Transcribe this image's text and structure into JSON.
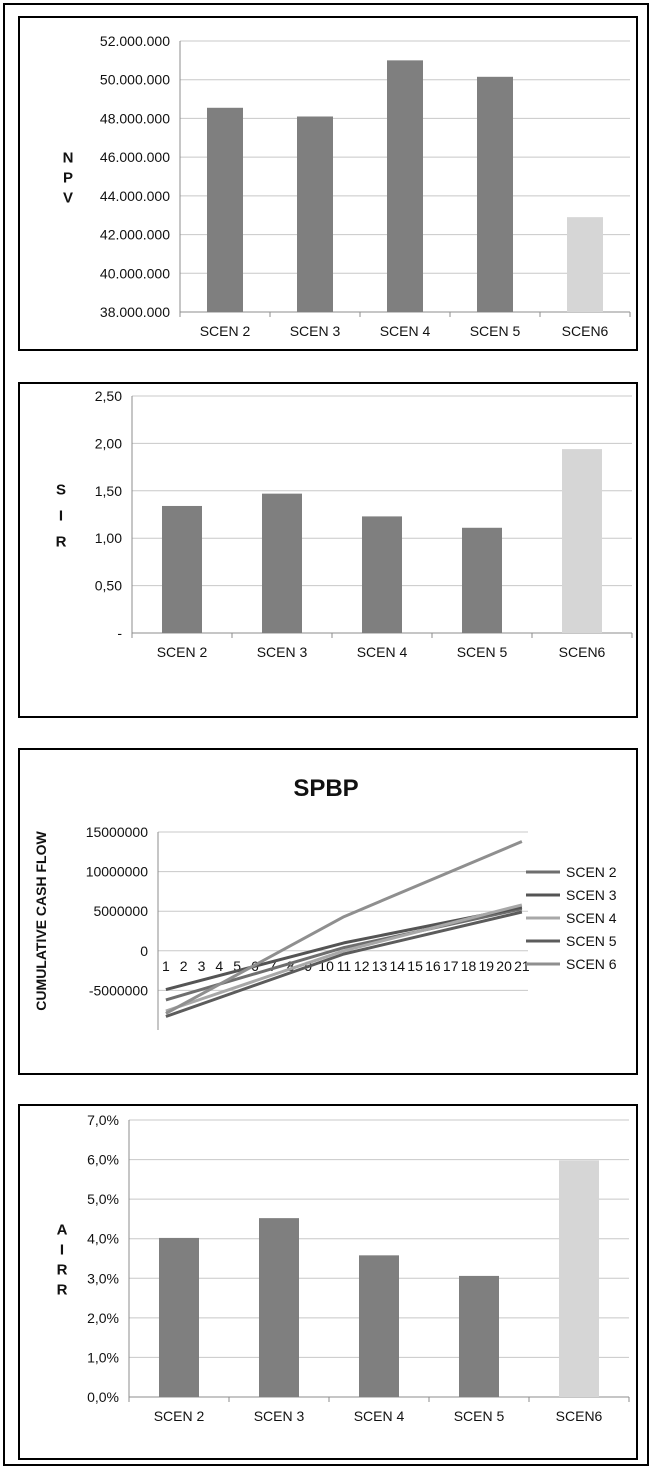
{
  "colors": {
    "bar": "#7f7f7f",
    "highlight": "#d6d6d6",
    "grid": "#c8c8c8",
    "axis": "#8c8c8c",
    "text": "#111111"
  },
  "chart_data": [
    {
      "type": "bar",
      "title": "",
      "ylabel": "NPV",
      "ylabel_letters": [
        "N",
        "P",
        "V"
      ],
      "categories": [
        "SCEN 2",
        "SCEN 3",
        "SCEN 4",
        "SCEN 5",
        "SCEN6"
      ],
      "values": [
        48550000,
        48100000,
        51000000,
        50150000,
        42900000
      ],
      "highlight_index": 4,
      "ylim": [
        38000000,
        52000000
      ],
      "yticks": [
        38000000,
        40000000,
        42000000,
        44000000,
        46000000,
        48000000,
        50000000,
        52000000
      ],
      "ytick_labels": [
        "38.000.000",
        "40.000.000",
        "42.000.000",
        "44.000.000",
        "46.000.000",
        "48.000.000",
        "50.000.000",
        "52.000.000"
      ],
      "grid": true
    },
    {
      "type": "bar",
      "title": "",
      "ylabel": "SIR",
      "ylabel_letters": [
        "S",
        "I",
        "R"
      ],
      "categories": [
        "SCEN 2",
        "SCEN 3",
        "SCEN 4",
        "SCEN 5",
        "SCEN6"
      ],
      "values": [
        1.34,
        1.47,
        1.23,
        1.11,
        1.94
      ],
      "highlight_index": 4,
      "ylim": [
        0,
        2.5
      ],
      "yticks": [
        0,
        0.5,
        1,
        1.5,
        2,
        2.5
      ],
      "ytick_labels": [
        "-",
        "0,50",
        "1,00",
        "1,50",
        "2,00",
        "2,50"
      ],
      "grid": true
    },
    {
      "type": "line",
      "title": "SPBP",
      "ylabel": "CUMULATIVE CASH FLOW",
      "x": [
        1,
        2,
        3,
        4,
        5,
        6,
        7,
        8,
        9,
        10,
        11,
        12,
        13,
        14,
        15,
        16,
        17,
        18,
        19,
        20,
        21
      ],
      "xtick_labels": [
        "1",
        "2",
        "3",
        "4",
        "5",
        "6",
        "7",
        "8",
        "9",
        "10",
        "11",
        "12",
        "13",
        "14",
        "15",
        "16",
        "17",
        "18",
        "19",
        "20",
        "21"
      ],
      "ylim": [
        -10000000,
        15000000
      ],
      "yticks": [
        -5000000,
        0,
        5000000,
        10000000,
        15000000
      ],
      "ytick_labels": [
        "-5000000",
        "0",
        "5000000",
        "10000000",
        "15000000"
      ],
      "legend_position": "right",
      "grid": true,
      "series": [
        {
          "name": "SCEN 2",
          "color": "#6e6e6e",
          "anchors": [
            [
              1,
              -6200000
            ],
            [
              11,
              400000
            ],
            [
              21,
              5300000
            ]
          ]
        },
        {
          "name": "SCEN 3",
          "color": "#545454",
          "anchors": [
            [
              1,
              -4900000
            ],
            [
              11,
              1000000
            ],
            [
              21,
              5500000
            ]
          ]
        },
        {
          "name": "SCEN 4",
          "color": "#a8a8a8",
          "anchors": [
            [
              1,
              -7600000
            ],
            [
              11,
              0
            ],
            [
              21,
              5800000
            ]
          ]
        },
        {
          "name": "SCEN 5",
          "color": "#5c5c5c",
          "anchors": [
            [
              1,
              -8300000
            ],
            [
              11,
              -400000
            ],
            [
              21,
              4900000
            ]
          ]
        },
        {
          "name": "SCEN 6",
          "color": "#8f8f8f",
          "anchors": [
            [
              1,
              -7900000
            ],
            [
              11,
              4300000
            ],
            [
              21,
              13800000
            ]
          ]
        }
      ]
    },
    {
      "type": "bar",
      "title": "",
      "ylabel": "AIRR",
      "ylabel_letters": [
        "A",
        "I",
        "R",
        "R"
      ],
      "categories": [
        "SCEN 2",
        "SCEN 3",
        "SCEN 4",
        "SCEN 5",
        "SCEN6"
      ],
      "values": [
        4.02,
        4.52,
        3.58,
        3.06,
        5.98
      ],
      "highlight_index": 4,
      "ylim": [
        0,
        7
      ],
      "yticks": [
        0,
        1,
        2,
        3,
        4,
        5,
        6,
        7
      ],
      "ytick_labels": [
        "0,0%",
        "1,0%",
        "2,0%",
        "3,0%",
        "4,0%",
        "5,0%",
        "6,0%",
        "7,0%"
      ],
      "grid": true
    }
  ]
}
